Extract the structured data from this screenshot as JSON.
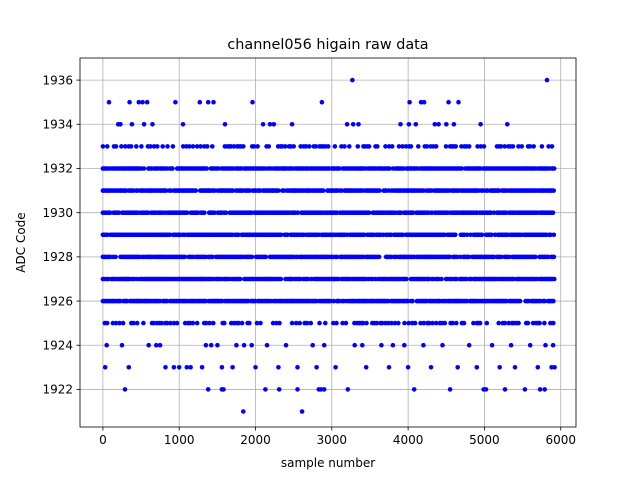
{
  "chart_data": {
    "type": "scatter",
    "title": "channel056 higain raw data",
    "xlabel": "sample number",
    "ylabel": "ADC Code",
    "xlim": [
      -300,
      6200
    ],
    "ylim": [
      1920.3,
      1937.0
    ],
    "xticks": [
      0,
      1000,
      2000,
      3000,
      4000,
      5000,
      6000
    ],
    "yticks": [
      1922,
      1924,
      1926,
      1928,
      1930,
      1932,
      1934,
      1936
    ],
    "grid": true,
    "marker_color": "#0000ff",
    "n_samples": 5920,
    "dense_levels": [
      1926,
      1927,
      1928,
      1929,
      1930,
      1931,
      1932
    ],
    "frequent_levels": [
      1925,
      1933
    ],
    "sparse_points": [
      [
        80,
        1935
      ],
      [
        350,
        1935
      ],
      [
        470,
        1935
      ],
      [
        520,
        1935
      ],
      [
        580,
        1935
      ],
      [
        950,
        1935
      ],
      [
        1270,
        1935
      ],
      [
        1380,
        1935
      ],
      [
        1450,
        1935
      ],
      [
        1960,
        1935
      ],
      [
        2870,
        1935
      ],
      [
        4020,
        1935
      ],
      [
        4170,
        1935
      ],
      [
        4210,
        1935
      ],
      [
        4530,
        1935
      ],
      [
        4660,
        1935
      ],
      [
        5820,
        1936
      ],
      [
        3270,
        1936
      ],
      [
        200,
        1934
      ],
      [
        230,
        1934
      ],
      [
        380,
        1934
      ],
      [
        540,
        1934
      ],
      [
        650,
        1934
      ],
      [
        1050,
        1934
      ],
      [
        1600,
        1934
      ],
      [
        2100,
        1934
      ],
      [
        2190,
        1934
      ],
      [
        2240,
        1934
      ],
      [
        2480,
        1934
      ],
      [
        3200,
        1934
      ],
      [
        3280,
        1934
      ],
      [
        3350,
        1934
      ],
      [
        3900,
        1934
      ],
      [
        4010,
        1934
      ],
      [
        4100,
        1934
      ],
      [
        4350,
        1934
      ],
      [
        4400,
        1934
      ],
      [
        4500,
        1934
      ],
      [
        4600,
        1934
      ],
      [
        4950,
        1934
      ],
      [
        5300,
        1934
      ],
      [
        50,
        1924
      ],
      [
        250,
        1924
      ],
      [
        600,
        1924
      ],
      [
        700,
        1924
      ],
      [
        750,
        1924
      ],
      [
        1350,
        1924
      ],
      [
        1420,
        1924
      ],
      [
        1500,
        1924
      ],
      [
        1750,
        1924
      ],
      [
        1850,
        1924
      ],
      [
        1950,
        1924
      ],
      [
        2150,
        1924
      ],
      [
        2400,
        1924
      ],
      [
        2750,
        1924
      ],
      [
        2900,
        1924
      ],
      [
        3300,
        1924
      ],
      [
        3400,
        1924
      ],
      [
        3650,
        1924
      ],
      [
        3800,
        1924
      ],
      [
        3950,
        1924
      ],
      [
        4200,
        1924
      ],
      [
        4450,
        1924
      ],
      [
        4800,
        1924
      ],
      [
        5100,
        1924
      ],
      [
        5350,
        1924
      ],
      [
        5600,
        1924
      ],
      [
        5800,
        1924
      ],
      [
        5900,
        1924
      ],
      [
        30,
        1923
      ],
      [
        340,
        1923
      ],
      [
        820,
        1923
      ],
      [
        930,
        1923
      ],
      [
        1000,
        1923
      ],
      [
        1100,
        1923
      ],
      [
        1150,
        1923
      ],
      [
        1300,
        1923
      ],
      [
        1560,
        1923
      ],
      [
        1700,
        1923
      ],
      [
        2000,
        1923
      ],
      [
        2300,
        1923
      ],
      [
        2550,
        1923
      ],
      [
        2800,
        1923
      ],
      [
        3050,
        1923
      ],
      [
        3450,
        1923
      ],
      [
        3750,
        1923
      ],
      [
        4000,
        1923
      ],
      [
        4300,
        1923
      ],
      [
        4650,
        1923
      ],
      [
        4900,
        1923
      ],
      [
        5200,
        1923
      ],
      [
        5400,
        1923
      ],
      [
        5700,
        1923
      ],
      [
        5880,
        1923
      ],
      [
        5920,
        1923
      ],
      [
        290,
        1922
      ],
      [
        1380,
        1922
      ],
      [
        1560,
        1922
      ],
      [
        1580,
        1922
      ],
      [
        2130,
        1922
      ],
      [
        2310,
        1922
      ],
      [
        2550,
        1922
      ],
      [
        2830,
        1922
      ],
      [
        2860,
        1922
      ],
      [
        2900,
        1922
      ],
      [
        3210,
        1922
      ],
      [
        4080,
        1922
      ],
      [
        4550,
        1922
      ],
      [
        4990,
        1922
      ],
      [
        5020,
        1922
      ],
      [
        5270,
        1922
      ],
      [
        5530,
        1922
      ],
      [
        5730,
        1922
      ],
      [
        5790,
        1922
      ],
      [
        1840,
        1921
      ],
      [
        2610,
        1921
      ]
    ]
  }
}
